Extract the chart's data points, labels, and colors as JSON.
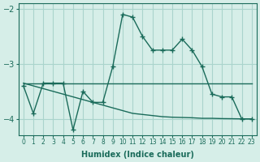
{
  "xlabel": "Humidex (Indice chaleur)",
  "ylabel": "",
  "background_color": "#d6eee8",
  "grid_color": "#aad4cc",
  "line_color": "#1a6b5a",
  "x_values": [
    0,
    1,
    2,
    3,
    4,
    5,
    6,
    7,
    8,
    9,
    10,
    11,
    12,
    13,
    14,
    15,
    16,
    17,
    18,
    19,
    20,
    21,
    22,
    23
  ],
  "series1": [
    -3.4,
    -3.9,
    -3.35,
    -3.35,
    -3.35,
    -4.2,
    -3.5,
    -3.7,
    -3.7,
    -3.05,
    -2.1,
    -2.15,
    -2.5,
    -2.75,
    -2.75,
    -2.75,
    -2.55,
    -2.75,
    -3.05,
    -3.55,
    -3.6,
    -3.6,
    -4.0,
    -4.0
  ],
  "series2": [
    -3.35,
    -3.35,
    -3.35,
    -3.35,
    -3.35,
    -3.35,
    -3.35,
    -3.35,
    -3.35,
    -3.35,
    -3.35,
    -3.35,
    -3.35,
    -3.35,
    -3.35,
    -3.35,
    -3.35,
    -3.35,
    -3.35,
    -3.35,
    -3.35,
    -3.35,
    -3.35,
    -3.35
  ],
  "series3": [
    -3.35,
    -3.4,
    -3.45,
    -3.5,
    -3.55,
    -3.6,
    -3.65,
    -3.7,
    -3.75,
    -3.8,
    -3.85,
    -3.9,
    -3.92,
    -3.94,
    -3.96,
    -3.97,
    -3.975,
    -3.98,
    -3.99,
    -3.99,
    -3.995,
    -3.997,
    -4.0,
    -4.0
  ],
  "ylim": [
    -4.3,
    -1.9
  ],
  "xlim": [
    -0.5,
    23.5
  ],
  "yticks": [
    -4,
    -3,
    -2
  ],
  "xtick_labels": [
    "0",
    "1",
    "2",
    "3",
    "4",
    "5",
    "6",
    "7",
    "8",
    "9",
    "10",
    "11",
    "12",
    "13",
    "14",
    "15",
    "16",
    "17",
    "18",
    "19",
    "20",
    "21",
    "22",
    "23"
  ]
}
